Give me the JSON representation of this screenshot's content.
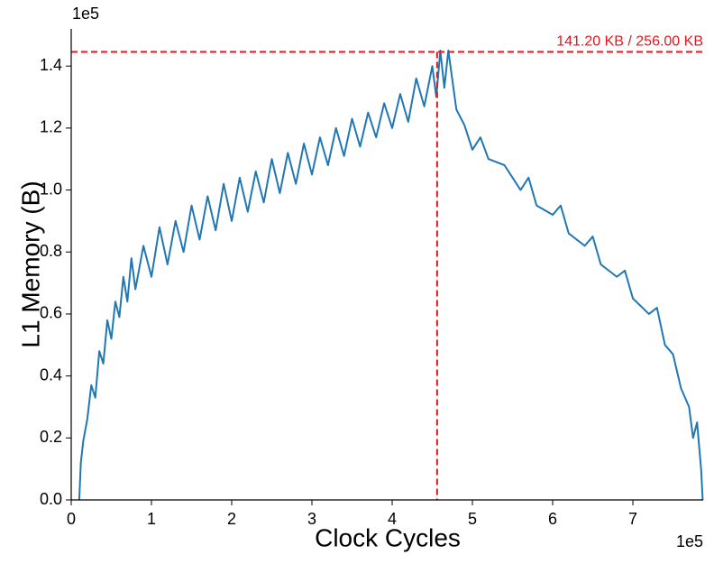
{
  "chart_data": {
    "type": "line",
    "xlabel": "Clock Cycles",
    "ylabel": "L1 Memory (B)",
    "x_offset_label": "1e5",
    "y_offset_label": "1e5",
    "xlim": [
      0,
      787600
    ],
    "ylim": [
      0,
      152000
    ],
    "xticks": [
      {
        "value": 0,
        "label": "0"
      },
      {
        "value": 100000,
        "label": "1"
      },
      {
        "value": 200000,
        "label": "2"
      },
      {
        "value": 300000,
        "label": "3"
      },
      {
        "value": 400000,
        "label": "4"
      },
      {
        "value": 500000,
        "label": "5"
      },
      {
        "value": 600000,
        "label": "6"
      },
      {
        "value": 700000,
        "label": "7"
      }
    ],
    "yticks": [
      {
        "value": 0,
        "label": "0.0"
      },
      {
        "value": 20000,
        "label": "0.2"
      },
      {
        "value": 40000,
        "label": "0.4"
      },
      {
        "value": 60000,
        "label": "0.6"
      },
      {
        "value": 80000,
        "label": "0.8"
      },
      {
        "value": 100000,
        "label": "1.0"
      },
      {
        "value": 120000,
        "label": "1.2"
      },
      {
        "value": 140000,
        "label": "1.4"
      }
    ],
    "peak": {
      "x": 456000,
      "y": 144589,
      "color": "#e8141c",
      "label": "141.20 KB / 256.00 KB"
    },
    "series": [
      {
        "color": "#1f77b4",
        "x": [
          10000,
          12000,
          15000,
          20000,
          25000,
          30000,
          35000,
          40000,
          45000,
          50000,
          55000,
          60000,
          65000,
          70000,
          75000,
          80000,
          90000,
          100000,
          110000,
          120000,
          130000,
          140000,
          150000,
          160000,
          170000,
          180000,
          190000,
          200000,
          210000,
          220000,
          230000,
          240000,
          250000,
          260000,
          270000,
          280000,
          290000,
          300000,
          310000,
          320000,
          330000,
          340000,
          350000,
          360000,
          370000,
          380000,
          390000,
          400000,
          410000,
          420000,
          430000,
          440000,
          450000,
          455000,
          460000,
          465000,
          470000,
          480000,
          490000,
          500000,
          510000,
          520000,
          540000,
          560000,
          570000,
          580000,
          600000,
          610000,
          620000,
          640000,
          650000,
          660000,
          680000,
          690000,
          700000,
          720000,
          730000,
          740000,
          750000,
          760000,
          770000,
          775000,
          780000,
          785000,
          787000
        ],
        "values": [
          0,
          12000,
          19000,
          26000,
          37000,
          33000,
          48000,
          44000,
          58000,
          52000,
          64000,
          59000,
          72000,
          64000,
          78000,
          68000,
          82000,
          72000,
          88000,
          76000,
          90000,
          80000,
          95000,
          84000,
          98000,
          87000,
          102000,
          90000,
          104000,
          93000,
          106000,
          96000,
          110000,
          99000,
          112000,
          102000,
          115000,
          105000,
          117000,
          108000,
          120000,
          111000,
          123000,
          114000,
          125000,
          117000,
          128000,
          120000,
          131000,
          122000,
          136000,
          127000,
          140000,
          130000,
          145000,
          133000,
          145000,
          126000,
          121000,
          113000,
          117000,
          110000,
          108000,
          100000,
          104000,
          95000,
          92000,
          95000,
          86000,
          82000,
          85000,
          76000,
          72000,
          74000,
          65000,
          60000,
          62000,
          50000,
          47000,
          36000,
          30000,
          20000,
          25000,
          10000,
          0
        ]
      }
    ]
  }
}
